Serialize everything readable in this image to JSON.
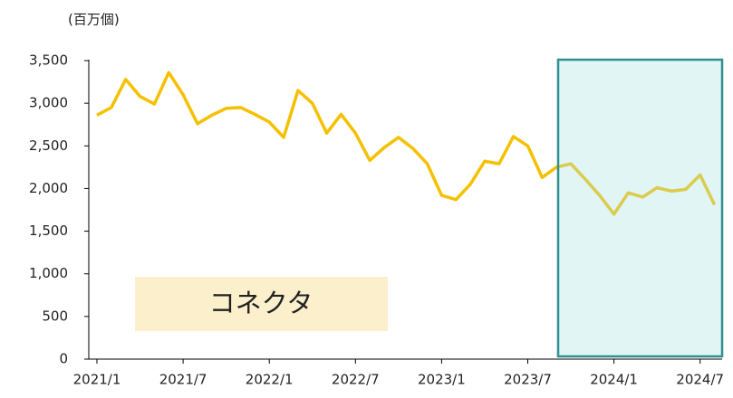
{
  "chart_data": {
    "type": "line",
    "y_unit_label": "(百万個)",
    "annotation": "コネクタ",
    "categories": [
      "2021/1",
      null,
      null,
      null,
      null,
      null,
      "2021/7",
      null,
      null,
      null,
      null,
      null,
      "2022/1",
      null,
      null,
      null,
      null,
      null,
      "2022/7",
      null,
      null,
      null,
      null,
      null,
      "2023/1",
      null,
      null,
      null,
      null,
      null,
      "2023/7",
      null,
      null,
      null,
      null,
      null,
      "2024/1",
      null,
      null,
      null,
      null,
      null,
      "2024/7",
      null
    ],
    "values": [
      2860,
      2950,
      3280,
      3080,
      2990,
      3360,
      3100,
      2760,
      2860,
      2940,
      2950,
      2870,
      2780,
      2600,
      3150,
      3000,
      2650,
      2870,
      2650,
      2330,
      2480,
      2600,
      2470,
      2290,
      1920,
      1870,
      2050,
      2320,
      2290,
      2610,
      2500,
      2130,
      2250,
      2290,
      2110,
      1920,
      1700,
      1950,
      1900,
      2010,
      1970,
      1990,
      2160,
      1810
    ],
    "color": "#f5c000",
    "ylim": [
      0,
      3500
    ],
    "yticks": [
      0,
      500,
      {
        "value": 1000,
        "label": "1,000"
      },
      {
        "value": 1500,
        "label": "1,500"
      },
      {
        "value": 2000,
        "label": "2,000"
      },
      {
        "value": 2500,
        "label": "2,500"
      },
      {
        "value": 3000,
        "label": "3,000"
      },
      {
        "value": 3500,
        "label": "3,500"
      }
    ],
    "grid": false
  }
}
